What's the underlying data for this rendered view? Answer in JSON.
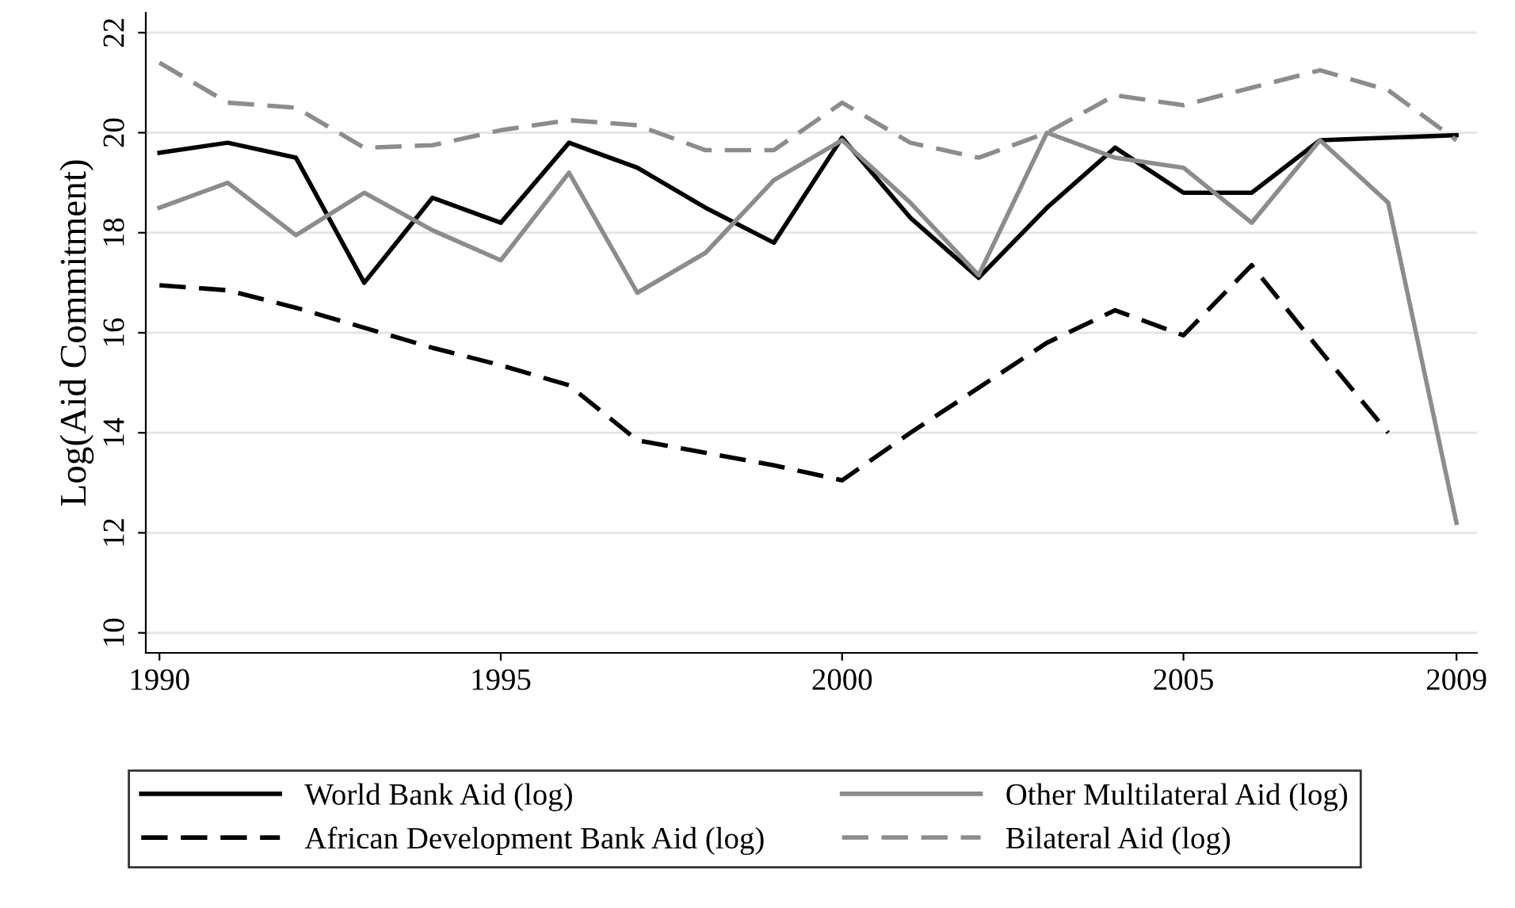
{
  "chart_data": {
    "type": "line",
    "ylabel": "Log(Aid Commitment)",
    "x": [
      1990,
      1991,
      1992,
      1993,
      1994,
      1995,
      1996,
      1997,
      1998,
      1999,
      2000,
      2001,
      2002,
      2003,
      2004,
      2005,
      2006,
      2007,
      2008,
      2009
    ],
    "xlim": [
      1989.8,
      2009.3
    ],
    "xticks": [
      1990,
      1995,
      2000,
      2005,
      2009
    ],
    "ylim": [
      9.6,
      22.4
    ],
    "yticks": [
      10,
      12,
      14,
      16,
      18,
      20,
      22
    ],
    "grid": "y",
    "legend": "bottom",
    "series": [
      {
        "name": "World Bank Aid (log)",
        "color": "#000000",
        "line_style": "solid",
        "values": [
          19.6,
          19.8,
          19.5,
          17.0,
          18.7,
          18.2,
          19.8,
          19.3,
          18.5,
          17.8,
          19.9,
          18.3,
          17.1,
          18.5,
          19.7,
          18.8,
          18.8,
          19.85,
          19.9,
          19.95
        ]
      },
      {
        "name": "African Development Bank Aid (log)",
        "color": "#000000",
        "line_style": "dashed",
        "values": [
          16.95,
          16.85,
          16.5,
          16.1,
          15.7,
          15.35,
          14.95,
          13.85,
          13.6,
          13.35,
          13.05,
          14.0,
          14.9,
          15.8,
          16.45,
          15.95,
          17.35,
          15.65,
          14.0,
          null
        ]
      },
      {
        "name": "Other Multilateral Aid (log)",
        "color": "#8c8c8c",
        "line_style": "solid",
        "values": [
          18.5,
          19.0,
          17.95,
          18.8,
          18.05,
          17.45,
          19.2,
          16.8,
          17.6,
          19.05,
          19.85,
          18.6,
          17.15,
          20.0,
          19.5,
          19.3,
          18.2,
          19.85,
          18.6,
          12.2
        ]
      },
      {
        "name": "Bilateral Aid (log)",
        "color": "#8c8c8c",
        "line_style": "dashed",
        "values": [
          21.4,
          20.6,
          20.5,
          19.7,
          19.75,
          20.05,
          20.25,
          20.15,
          19.65,
          19.65,
          20.6,
          19.8,
          19.5,
          20.0,
          20.75,
          20.55,
          20.9,
          21.25,
          20.85,
          19.85
        ]
      }
    ]
  }
}
